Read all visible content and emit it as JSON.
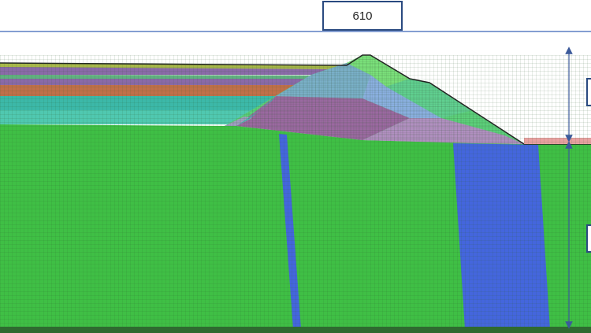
{
  "label": "610"
}
